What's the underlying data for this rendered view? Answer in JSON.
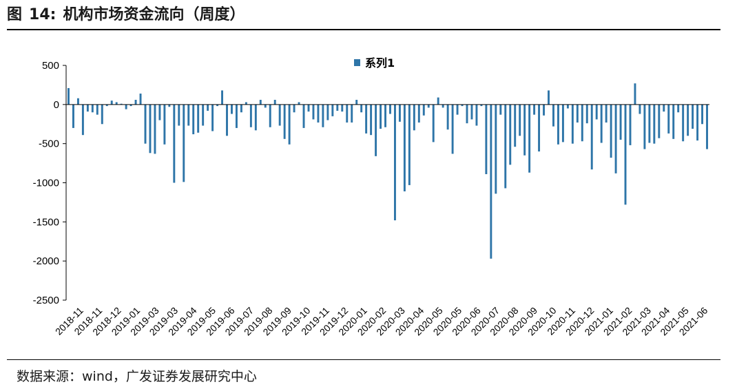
{
  "figure": {
    "label": "图",
    "number": "14:",
    "title": "机构市场资金流向（周度）"
  },
  "source": "数据来源：wind，广发证券发展研究中心",
  "chart_data": {
    "type": "bar",
    "title": "",
    "xlabel": "",
    "ylabel": "",
    "ylim": [
      -2500,
      500
    ],
    "yticks": [
      500,
      0,
      -500,
      -1000,
      -1500,
      -2000,
      -2500
    ],
    "legend_position": "top-center",
    "bar_color": "#2e75a8",
    "x_tick_labels": [
      "2018-11",
      "2018-11",
      "2018-12",
      "2019-01",
      "2019-03",
      "2019-03",
      "2019-04",
      "2019-05",
      "2019-06",
      "2019-07",
      "2019-08",
      "2019-09",
      "2019-10",
      "2019-11",
      "2019-12",
      "2020-01",
      "2020-02",
      "2020-03",
      "2020-04",
      "2020-05",
      "2020-05",
      "2020-06",
      "2020-07",
      "2020-08",
      "2020-09",
      "2020-10",
      "2020-11",
      "2020-12",
      "2021-01",
      "2021-02",
      "2021-03",
      "2021-04",
      "2021-05",
      "2021-06"
    ],
    "series": [
      {
        "name": "系列1",
        "values": [
          210,
          -300,
          80,
          -390,
          -90,
          -100,
          -130,
          -250,
          -20,
          50,
          30,
          10,
          -60,
          -20,
          60,
          140,
          -500,
          -620,
          -630,
          -200,
          -510,
          -30,
          -1000,
          -270,
          -990,
          -270,
          -380,
          -360,
          -270,
          -80,
          -340,
          -20,
          180,
          -400,
          -120,
          -300,
          -100,
          30,
          -290,
          -330,
          60,
          -40,
          -290,
          60,
          -270,
          -440,
          -510,
          -100,
          30,
          -300,
          -90,
          -190,
          -230,
          -290,
          -200,
          -150,
          -80,
          -90,
          -230,
          -230,
          60,
          -100,
          -370,
          -390,
          -660,
          -310,
          -290,
          -120,
          -1480,
          -220,
          -1110,
          -1030,
          -330,
          -230,
          -140,
          -40,
          -480,
          90,
          -40,
          -320,
          -630,
          -130,
          -20,
          -240,
          -190,
          -270,
          -20,
          -890,
          -1970,
          -1140,
          -130,
          -1070,
          -770,
          -540,
          -400,
          -650,
          -870,
          -130,
          -600,
          -140,
          180,
          -280,
          -510,
          -480,
          -50,
          -500,
          -230,
          -470,
          -240,
          -830,
          -190,
          -490,
          -230,
          -680,
          -880,
          -450,
          -1280,
          -520,
          270,
          -120,
          -570,
          -490,
          -500,
          -430,
          -90,
          -370,
          -440,
          -100,
          -470,
          -400,
          -310,
          -460,
          -250,
          -570
        ]
      }
    ]
  }
}
